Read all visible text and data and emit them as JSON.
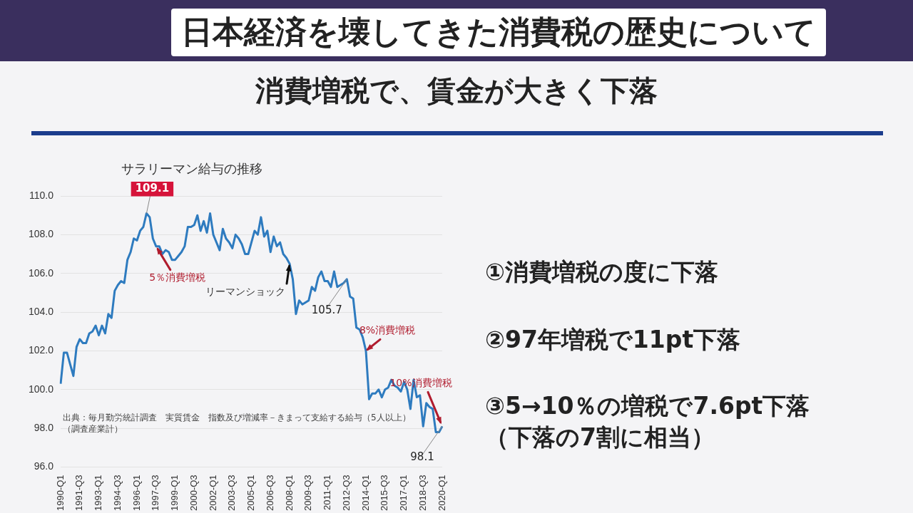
{
  "chart_data": {
    "type": "line",
    "title": "サラリーマン給与の推移",
    "categories": [
      "1990-Q1",
      null,
      null,
      null,
      null,
      null,
      "1991-Q3",
      null,
      null,
      null,
      null,
      null,
      "1993-Q1",
      null,
      null,
      null,
      null,
      null,
      "1994-Q3",
      null,
      null,
      null,
      null,
      null,
      "1996-Q1",
      null,
      null,
      null,
      null,
      null,
      "1997-Q3",
      null,
      null,
      null,
      null,
      null,
      "1999-Q1",
      null,
      null,
      null,
      null,
      null,
      "2000-Q3",
      null,
      null,
      null,
      null,
      null,
      "2002-Q1",
      null,
      null,
      null,
      null,
      null,
      "2003-Q3",
      null,
      null,
      null,
      null,
      null,
      "2005-Q1",
      null,
      null,
      null,
      null,
      null,
      "2006-Q3",
      null,
      null,
      null,
      null,
      null,
      "2008-Q1",
      null,
      null,
      null,
      null,
      null,
      "2009-Q3",
      null,
      null,
      null,
      null,
      null,
      "2011-Q1",
      null,
      null,
      null,
      null,
      null,
      "2012-Q3",
      null,
      null,
      null,
      null,
      null,
      "2014-Q1",
      null,
      null,
      null,
      null,
      null,
      "2015-Q3",
      null,
      null,
      null,
      null,
      null,
      "2017-Q1",
      null,
      null,
      null,
      null,
      null,
      "2018-Q3",
      null,
      null,
      null,
      null,
      null,
      "2020-Q1"
    ],
    "series": [
      {
        "color": "#2e7bbf",
        "values": [
          100.3,
          101.9,
          101.9,
          101.3,
          100.7,
          102.2,
          102.6,
          102.4,
          102.4,
          102.9,
          103.0,
          103.3,
          102.8,
          103.3,
          102.9,
          103.9,
          103.7,
          105.1,
          105.4,
          105.6,
          105.5,
          106.7,
          107.1,
          107.8,
          107.7,
          108.2,
          108.4,
          109.1,
          108.9,
          107.8,
          107.4,
          107.4,
          107.0,
          107.2,
          107.1,
          106.7,
          106.7,
          106.9,
          107.1,
          107.4,
          108.4,
          108.4,
          108.5,
          109.0,
          108.2,
          108.7,
          108.1,
          109.1,
          108.0,
          107.6,
          107.2,
          108.3,
          107.8,
          107.6,
          107.3,
          108.0,
          107.8,
          107.5,
          107.0,
          107.0,
          107.6,
          108.2,
          108.0,
          108.9,
          107.9,
          108.2,
          107.1,
          107.9,
          107.4,
          107.6,
          107.0,
          106.8,
          106.5,
          105.7,
          103.9,
          104.6,
          104.4,
          104.5,
          104.6,
          105.3,
          105.1,
          105.8,
          106.1,
          105.6,
          105.6,
          105.3,
          106.1,
          105.3,
          105.4,
          105.5,
          105.7,
          104.8,
          104.7,
          103.2,
          103.1,
          102.7,
          102.0,
          99.5,
          99.8,
          99.8,
          100.0,
          99.6,
          100.0,
          100.1,
          100.5,
          100.2,
          100.1,
          99.9,
          100.4,
          100.0,
          99.0,
          100.5,
          99.6,
          99.7,
          98.1,
          99.3,
          99.1,
          99.0,
          97.8,
          97.8,
          98.1
        ],
        "value_labels": [
          null,
          null,
          null,
          null,
          null,
          null,
          null,
          null,
          null,
          null,
          null,
          null,
          null,
          null,
          null,
          null,
          null,
          null,
          null,
          null,
          null,
          null,
          null,
          null,
          null,
          null,
          null,
          "109.1",
          null,
          null,
          null,
          null,
          null,
          null,
          null,
          null,
          null,
          null,
          null,
          null,
          null,
          null,
          null,
          null,
          null,
          null,
          null,
          null,
          null,
          null,
          null,
          null,
          null,
          null,
          null,
          null,
          null,
          null,
          null,
          null,
          null,
          null,
          null,
          null,
          null,
          null,
          null,
          null,
          null,
          null,
          null,
          null,
          null,
          null,
          null,
          null,
          null,
          null,
          null,
          null,
          null,
          null,
          null,
          null,
          null,
          null,
          null,
          null,
          null,
          null,
          "105.7",
          null,
          null,
          null,
          null,
          null,
          null,
          null,
          null,
          null,
          null,
          null,
          null,
          null,
          null,
          null,
          null,
          null,
          null,
          null,
          null,
          null,
          null,
          null,
          null,
          null,
          null,
          null,
          null,
          null,
          "98.1"
        ]
      }
    ],
    "ylim": [
      96,
      110
    ],
    "yticks": [
      {
        "value": 96,
        "label": "96.0"
      },
      {
        "value": 98,
        "label": "98.0"
      },
      {
        "value": 100,
        "label": "100.0"
      },
      {
        "value": 102,
        "label": "102.0"
      },
      {
        "value": 104,
        "label": "104.0"
      },
      {
        "value": 106,
        "label": "106.0"
      },
      {
        "value": 108,
        "label": "108.0"
      },
      {
        "value": 110,
        "label": "110.0"
      }
    ],
    "grid": "y",
    "legend": false,
    "marker": "none",
    "line_style": "solid",
    "annotations": [
      {
        "text": "5％消費増税",
        "x": "1997-Q3",
        "y": 107.4
      },
      {
        "text": "リーマンショック",
        "x": "2008-Q1",
        "y": 106.5
      },
      {
        "text": "8%消費増税",
        "x": "2014-Q1",
        "y": 102.0
      },
      {
        "text": "10%消費増税",
        "x": "2020-Q1",
        "y": 98.1
      },
      "日本経済を壊してきた消費税の歴史について",
      "消費増税で、賃金が大きく下落",
      "①消費増税の度に下落",
      "②97年増税で11pt下落",
      "③5→10％の増税で7.6pt下落",
      "（下落の7割に相当）",
      "出典：毎月勤労統計調査　実質賃金　指数及び増減率－きまって支給する給与（5人以上）（調査産業計）"
    ]
  }
}
